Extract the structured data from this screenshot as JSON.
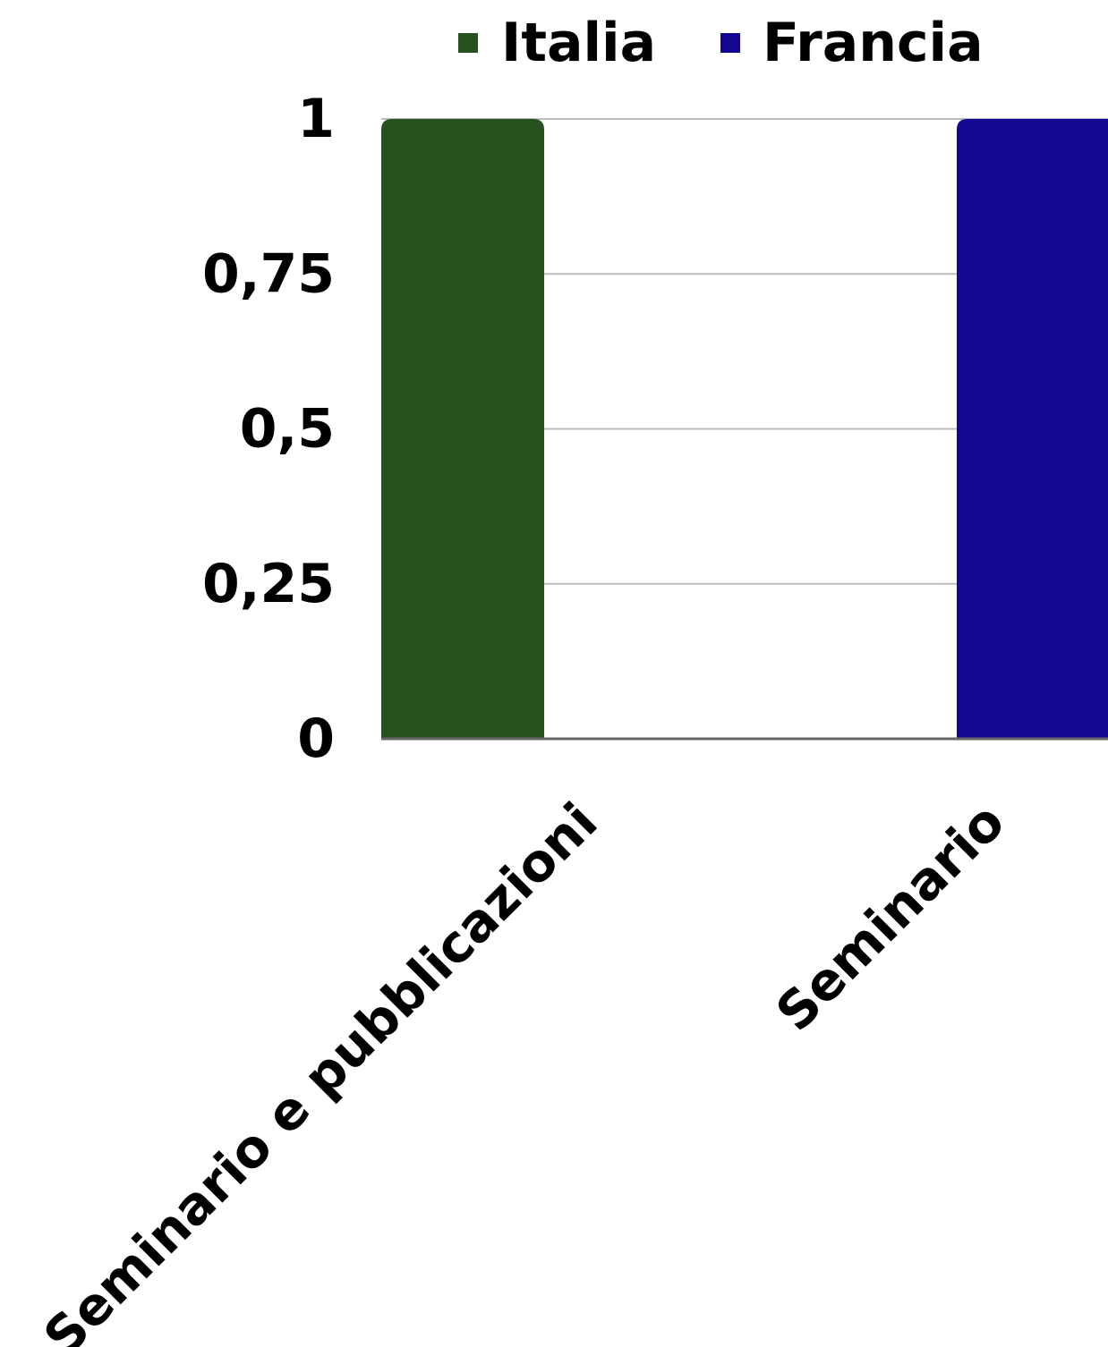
{
  "chart_data": {
    "type": "bar",
    "categories": [
      "Seminario e pubblicazioni",
      "Seminario"
    ],
    "series": [
      {
        "name": "Italia",
        "color": "#27511e",
        "values": [
          1,
          0
        ]
      },
      {
        "name": "Francia",
        "color": "#130690",
        "values": [
          0,
          1
        ]
      }
    ],
    "ylim": [
      0,
      1
    ],
    "yticks": [
      0,
      0.25,
      0.5,
      0.75,
      1
    ],
    "ytick_labels": [
      "0",
      "0,25",
      "0,5",
      "0,75",
      "1"
    ],
    "legend_position": "top",
    "grid": true
  }
}
